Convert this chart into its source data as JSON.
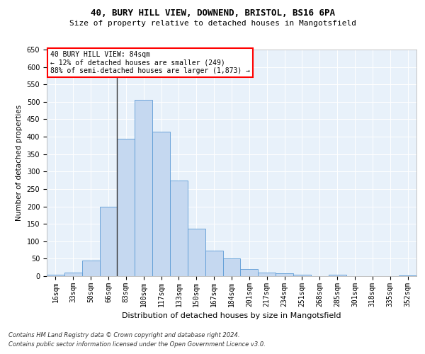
{
  "title1": "40, BURY HILL VIEW, DOWNEND, BRISTOL, BS16 6PA",
  "title2": "Size of property relative to detached houses in Mangotsfield",
  "xlabel": "Distribution of detached houses by size in Mangotsfield",
  "ylabel": "Number of detached properties",
  "categories": [
    "16sqm",
    "33sqm",
    "50sqm",
    "66sqm",
    "83sqm",
    "100sqm",
    "117sqm",
    "133sqm",
    "150sqm",
    "167sqm",
    "184sqm",
    "201sqm",
    "217sqm",
    "234sqm",
    "251sqm",
    "268sqm",
    "285sqm",
    "301sqm",
    "318sqm",
    "335sqm",
    "352sqm"
  ],
  "values": [
    5,
    10,
    45,
    200,
    395,
    505,
    415,
    275,
    137,
    73,
    50,
    20,
    11,
    8,
    5,
    0,
    5,
    0,
    0,
    0,
    2
  ],
  "bar_color": "#c5d8f0",
  "bar_edge_color": "#5b9bd5",
  "vline_x_index": 4,
  "annotation_line1": "40 BURY HILL VIEW: 84sqm",
  "annotation_line2": "← 12% of detached houses are smaller (249)",
  "annotation_line3": "88% of semi-detached houses are larger (1,873) →",
  "ylim": [
    0,
    650
  ],
  "yticks": [
    0,
    50,
    100,
    150,
    200,
    250,
    300,
    350,
    400,
    450,
    500,
    550,
    600,
    650
  ],
  "footer1": "Contains HM Land Registry data © Crown copyright and database right 2024.",
  "footer2": "Contains public sector information licensed under the Open Government Licence v3.0.",
  "bg_color": "#e8f1fa",
  "grid_color": "#ffffff",
  "title1_fontsize": 9,
  "title2_fontsize": 8,
  "xlabel_fontsize": 8,
  "ylabel_fontsize": 7.5,
  "tick_fontsize": 7,
  "ann_fontsize": 7,
  "footer_fontsize": 6
}
